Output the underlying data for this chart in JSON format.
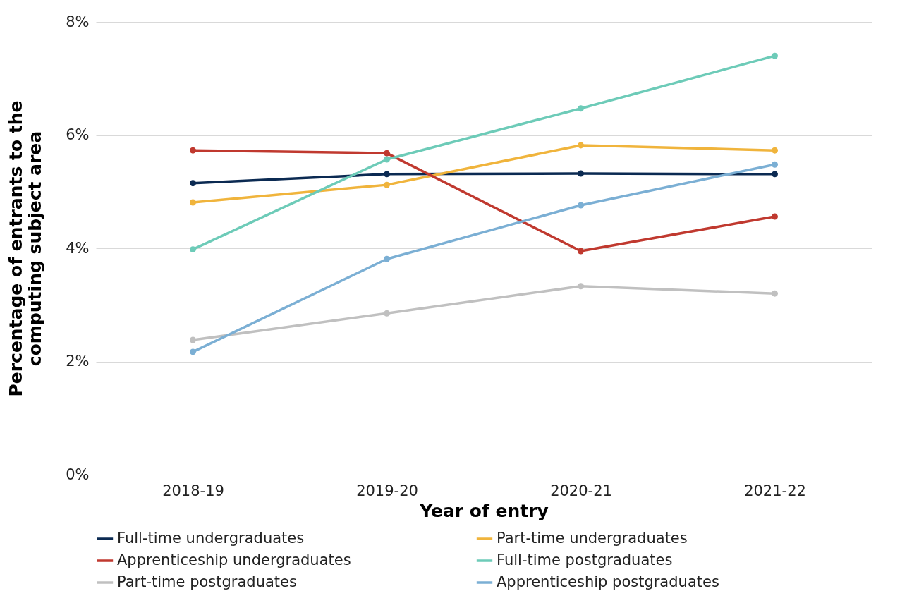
{
  "chart_data": {
    "type": "line",
    "xlabel": "Year of entry",
    "ylabel": "Percentage of entrants to the computing subject area",
    "categories": [
      "2018-19",
      "2019-20",
      "2020-21",
      "2021-22"
    ],
    "series": [
      {
        "name": "Full-time undergraduates",
        "color": "#0b2a52",
        "values": [
          5.15,
          5.31,
          5.32,
          5.31
        ]
      },
      {
        "name": "Part-time undergraduates",
        "color": "#f0b43c",
        "values": [
          4.81,
          5.12,
          5.82,
          5.73
        ]
      },
      {
        "name": "Apprenticeship undergraduates",
        "color": "#c0392f",
        "values": [
          5.73,
          5.68,
          3.95,
          4.56
        ]
      },
      {
        "name": "Full-time postgraduates",
        "color": "#6dcbb8",
        "values": [
          3.98,
          5.57,
          6.47,
          7.4
        ]
      },
      {
        "name": "Part-time postgraduates",
        "color": "#c0c0c0",
        "values": [
          2.38,
          2.85,
          3.33,
          3.2
        ]
      },
      {
        "name": "Apprenticeship postgraduates",
        "color": "#7bafd4",
        "values": [
          2.17,
          3.81,
          4.76,
          5.48
        ]
      }
    ],
    "ylim": [
      0,
      8
    ],
    "yticks": [
      {
        "value": 0,
        "label": "0%"
      },
      {
        "value": 2,
        "label": "2%"
      },
      {
        "value": 4,
        "label": "4%"
      },
      {
        "value": 6,
        "label": "6%"
      },
      {
        "value": 8,
        "label": "8%"
      }
    ],
    "grid": "y",
    "legend": "bottom",
    "marker": "circle",
    "line_style": "solid"
  }
}
